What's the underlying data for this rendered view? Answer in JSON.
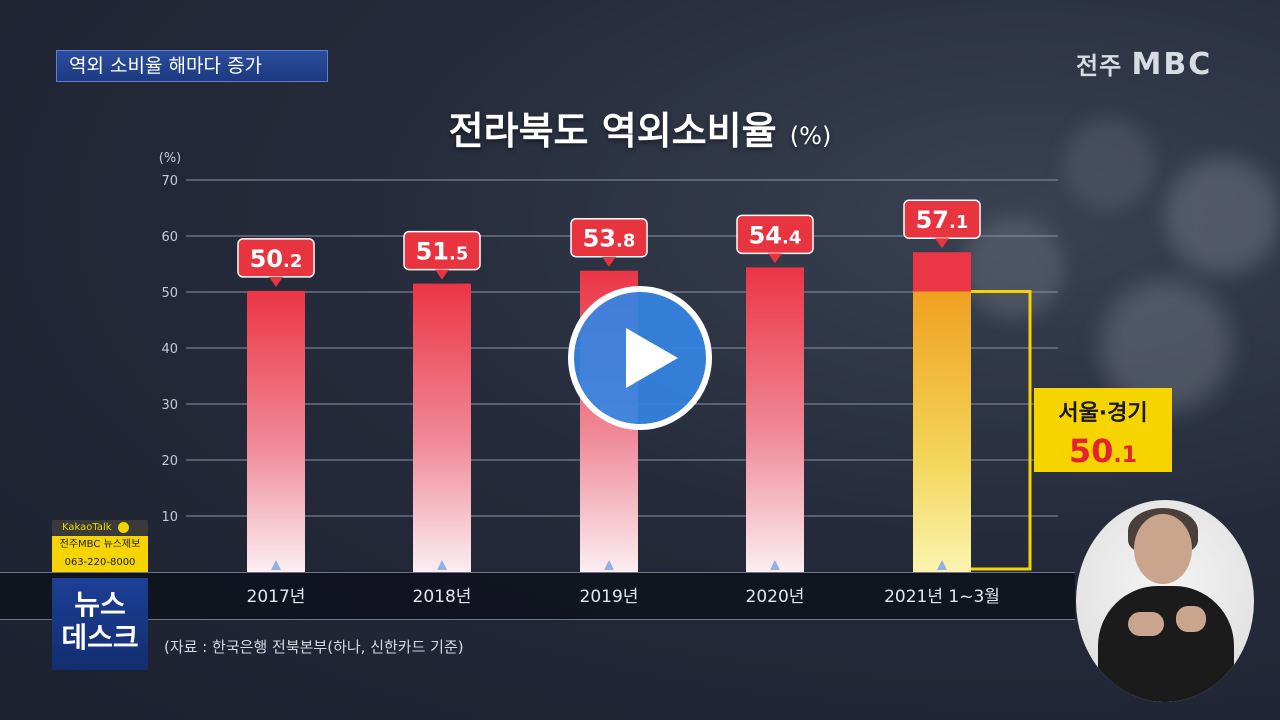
{
  "headline": "역외 소비율 해마다 증가",
  "broadcaster": {
    "region": "전주",
    "name": "MBC"
  },
  "kakao": {
    "brand": "KakaoTalk",
    "line1": "전주MBC 뉴스제보",
    "line2": "063-220-8000"
  },
  "show": {
    "line1": "뉴스",
    "line2": "데스크"
  },
  "source": "(자료 : 한국은행 전북본부(하나, 신한카드 기준)",
  "icons": {
    "play": "play-icon",
    "kakao": "kakao-icon"
  },
  "colors": {
    "bar_top": "#ec3545",
    "bar_highlight_top": "#f0a020",
    "box_yellow": "#f5d400",
    "label_red": "#e8343f"
  },
  "chart_data": {
    "type": "bar",
    "title": "전라북도 역외소비율",
    "title_unit": "(%)",
    "ylabel": "(%)",
    "ylim": [
      0,
      70
    ],
    "yticks": [
      10,
      20,
      30,
      40,
      50,
      60,
      70
    ],
    "grid": true,
    "categories": [
      "2017년",
      "2018년",
      "2019년",
      "2020년",
      "2021년 1~3월"
    ],
    "values": [
      50.2,
      51.5,
      53.8,
      54.4,
      57.1
    ],
    "value_labels": [
      "50.2",
      "51.5",
      "53.8",
      "54.4",
      "57.1"
    ],
    "comparison": {
      "label": "서울·경기",
      "value": 50.1,
      "value_label": "50.1",
      "category": "2021년 1~3월"
    }
  }
}
